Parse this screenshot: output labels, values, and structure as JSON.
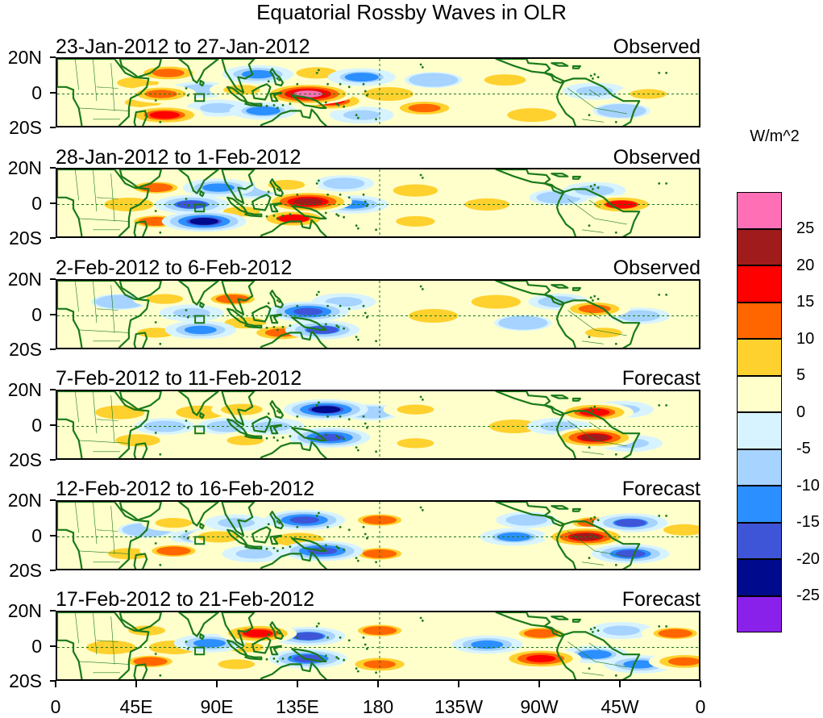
{
  "title": "Equatorial Rossby Waves in OLR",
  "units": "W/m^2",
  "y_axis_labels": [
    "20N",
    "0",
    "20S"
  ],
  "x_axis_labels": [
    "0",
    "45E",
    "90E",
    "135E",
    "180",
    "135W",
    "90W",
    "45W",
    "0"
  ],
  "colorbar": {
    "levels": [
      "25",
      "20",
      "15",
      "10",
      "5",
      "0",
      "-5",
      "-10",
      "-15",
      "-20",
      "-25"
    ],
    "colors": [
      "#ff6fb6",
      "#a01b1b",
      "#ff0000",
      "#ff6600",
      "#ffd12e",
      "#ffffcc",
      "#d7f3ff",
      "#a6d3ff",
      "#2b8fff",
      "#3f55d8",
      "#000a8c",
      "#8a21ea"
    ]
  },
  "panels": [
    {
      "dates": "23-Jan-2012 to 27-Jan-2012",
      "type": "Observed"
    },
    {
      "dates": "28-Jan-2012 to 1-Feb-2012",
      "type": "Observed"
    },
    {
      "dates": "2-Feb-2012 to 6-Feb-2012",
      "type": "Observed"
    },
    {
      "dates": "7-Feb-2012 to 11-Feb-2012",
      "type": "Forecast"
    },
    {
      "dates": "12-Feb-2012 to 16-Feb-2012",
      "type": "Forecast"
    },
    {
      "dates": "17-Feb-2012 to 21-Feb-2012",
      "type": "Forecast"
    }
  ],
  "map_styles": {
    "coastline_color": "#1a7a1a",
    "equator_color": "#1a7a1a"
  },
  "anomalies": [
    [
      {
        "lon": 45,
        "lat": 8,
        "value": 8
      },
      {
        "lon": 48,
        "lat": -6,
        "value": 10
      },
      {
        "lon": 58,
        "lat": 0,
        "value": 14
      },
      {
        "lon": 60,
        "lat": -15,
        "value": 18
      },
      {
        "lon": 62,
        "lat": 15,
        "value": 14
      },
      {
        "lon": 80,
        "lat": 3,
        "value": -8
      },
      {
        "lon": 90,
        "lat": -10,
        "value": -10
      },
      {
        "lon": 103,
        "lat": 3,
        "value": 10
      },
      {
        "lon": 112,
        "lat": 14,
        "value": -14
      },
      {
        "lon": 115,
        "lat": -12,
        "value": -12
      },
      {
        "lon": 140,
        "lat": 0,
        "value": 26
      },
      {
        "lon": 152,
        "lat": -5,
        "value": 18
      },
      {
        "lon": 145,
        "lat": 15,
        "value": 8
      },
      {
        "lon": 170,
        "lat": 12,
        "value": -12
      },
      {
        "lon": 170,
        "lat": -15,
        "value": -10
      },
      {
        "lon": 185,
        "lat": 0,
        "value": 6
      },
      {
        "lon": 205,
        "lat": -10,
        "value": 14
      },
      {
        "lon": 210,
        "lat": 10,
        "value": -6
      },
      {
        "lon": 250,
        "lat": 10,
        "value": 8
      },
      {
        "lon": 265,
        "lat": -15,
        "value": 6
      },
      {
        "lon": 300,
        "lat": 2,
        "value": -10
      },
      {
        "lon": 330,
        "lat": 0,
        "value": 10
      },
      {
        "lon": 315,
        "lat": -12,
        "value": -6
      }
    ],
    [
      {
        "lon": 40,
        "lat": 0,
        "value": 6
      },
      {
        "lon": 55,
        "lat": 12,
        "value": 12
      },
      {
        "lon": 55,
        "lat": -12,
        "value": 12
      },
      {
        "lon": 75,
        "lat": 0,
        "value": -16
      },
      {
        "lon": 82,
        "lat": -12,
        "value": -22
      },
      {
        "lon": 90,
        "lat": 12,
        "value": -14
      },
      {
        "lon": 103,
        "lat": -5,
        "value": 10
      },
      {
        "lon": 110,
        "lat": 10,
        "value": -8
      },
      {
        "lon": 128,
        "lat": 14,
        "value": 10
      },
      {
        "lon": 140,
        "lat": 2,
        "value": 24
      },
      {
        "lon": 132,
        "lat": -10,
        "value": 16
      },
      {
        "lon": 165,
        "lat": 0,
        "value": -14
      },
      {
        "lon": 160,
        "lat": 15,
        "value": -8
      },
      {
        "lon": 200,
        "lat": 10,
        "value": 7
      },
      {
        "lon": 200,
        "lat": -12,
        "value": 9
      },
      {
        "lon": 240,
        "lat": 0,
        "value": 7
      },
      {
        "lon": 280,
        "lat": 5,
        "value": -7
      },
      {
        "lon": 300,
        "lat": 10,
        "value": -9
      },
      {
        "lon": 315,
        "lat": 0,
        "value": 16
      },
      {
        "lon": 340,
        "lat": 0,
        "value": 4
      }
    ],
    [
      {
        "lon": 35,
        "lat": 10,
        "value": -6
      },
      {
        "lon": 55,
        "lat": -12,
        "value": 10
      },
      {
        "lon": 60,
        "lat": 12,
        "value": 10
      },
      {
        "lon": 75,
        "lat": 2,
        "value": -10
      },
      {
        "lon": 80,
        "lat": -10,
        "value": -14
      },
      {
        "lon": 98,
        "lat": 12,
        "value": 12
      },
      {
        "lon": 105,
        "lat": -5,
        "value": 8
      },
      {
        "lon": 140,
        "lat": 3,
        "value": -20
      },
      {
        "lon": 148,
        "lat": -10,
        "value": -16
      },
      {
        "lon": 125,
        "lat": -12,
        "value": 14
      },
      {
        "lon": 160,
        "lat": 10,
        "value": -10
      },
      {
        "lon": 210,
        "lat": 0,
        "value": 6
      },
      {
        "lon": 245,
        "lat": 10,
        "value": 6
      },
      {
        "lon": 260,
        "lat": -5,
        "value": -6
      },
      {
        "lon": 280,
        "lat": 10,
        "value": -8
      },
      {
        "lon": 300,
        "lat": 5,
        "value": 14
      },
      {
        "lon": 305,
        "lat": -12,
        "value": 10
      },
      {
        "lon": 325,
        "lat": 0,
        "value": -8
      }
    ],
    [
      {
        "lon": 35,
        "lat": 10,
        "value": 6
      },
      {
        "lon": 45,
        "lat": -10,
        "value": 7
      },
      {
        "lon": 60,
        "lat": 0,
        "value": -8
      },
      {
        "lon": 80,
        "lat": 10,
        "value": 6
      },
      {
        "lon": 95,
        "lat": 0,
        "value": -8
      },
      {
        "lon": 103,
        "lat": 12,
        "value": 8
      },
      {
        "lon": 105,
        "lat": -10,
        "value": 10
      },
      {
        "lon": 120,
        "lat": 0,
        "value": -10
      },
      {
        "lon": 150,
        "lat": 12,
        "value": -22
      },
      {
        "lon": 152,
        "lat": -8,
        "value": -20
      },
      {
        "lon": 175,
        "lat": 10,
        "value": -7
      },
      {
        "lon": 200,
        "lat": 12,
        "value": 10
      },
      {
        "lon": 200,
        "lat": -12,
        "value": 10
      },
      {
        "lon": 225,
        "lat": 0,
        "value": 5
      },
      {
        "lon": 255,
        "lat": 0,
        "value": 6
      },
      {
        "lon": 280,
        "lat": 0,
        "value": -10
      },
      {
        "lon": 300,
        "lat": 10,
        "value": 18
      },
      {
        "lon": 300,
        "lat": -8,
        "value": 22
      },
      {
        "lon": 315,
        "lat": 12,
        "value": -10
      },
      {
        "lon": 320,
        "lat": -12,
        "value": -10
      },
      {
        "lon": 345,
        "lat": 0,
        "value": 4
      }
    ],
    [
      {
        "lon": 40,
        "lat": -12,
        "value": 8
      },
      {
        "lon": 50,
        "lat": 5,
        "value": -6
      },
      {
        "lon": 65,
        "lat": 10,
        "value": 10
      },
      {
        "lon": 65,
        "lat": -10,
        "value": 12
      },
      {
        "lon": 80,
        "lat": 0,
        "value": -8
      },
      {
        "lon": 90,
        "lat": 0,
        "value": 8
      },
      {
        "lon": 100,
        "lat": 10,
        "value": -10
      },
      {
        "lon": 110,
        "lat": -12,
        "value": -10
      },
      {
        "lon": 138,
        "lat": 12,
        "value": -20
      },
      {
        "lon": 148,
        "lat": -10,
        "value": -20
      },
      {
        "lon": 135,
        "lat": -2,
        "value": 6
      },
      {
        "lon": 180,
        "lat": 12,
        "value": 12
      },
      {
        "lon": 180,
        "lat": -12,
        "value": 12
      },
      {
        "lon": 215,
        "lat": 0,
        "value": 3
      },
      {
        "lon": 255,
        "lat": 0,
        "value": -12
      },
      {
        "lon": 262,
        "lat": 12,
        "value": -8
      },
      {
        "lon": 295,
        "lat": 0,
        "value": 22
      },
      {
        "lon": 300,
        "lat": 10,
        "value": 12
      },
      {
        "lon": 320,
        "lat": 10,
        "value": -16
      },
      {
        "lon": 320,
        "lat": -12,
        "value": -18
      },
      {
        "lon": 350,
        "lat": 5,
        "value": 8
      }
    ],
    [
      {
        "lon": 30,
        "lat": 0,
        "value": 6
      },
      {
        "lon": 50,
        "lat": 12,
        "value": 10
      },
      {
        "lon": 52,
        "lat": -10,
        "value": 12
      },
      {
        "lon": 65,
        "lat": 0,
        "value": 6
      },
      {
        "lon": 85,
        "lat": 3,
        "value": -14
      },
      {
        "lon": 105,
        "lat": 0,
        "value": 10
      },
      {
        "lon": 112,
        "lat": 10,
        "value": 18
      },
      {
        "lon": 100,
        "lat": -12,
        "value": 10
      },
      {
        "lon": 140,
        "lat": 8,
        "value": -16
      },
      {
        "lon": 140,
        "lat": -8,
        "value": -18
      },
      {
        "lon": 180,
        "lat": 12,
        "value": 12
      },
      {
        "lon": 180,
        "lat": -12,
        "value": 14
      },
      {
        "lon": 210,
        "lat": 0,
        "value": 5
      },
      {
        "lon": 240,
        "lat": 2,
        "value": -14
      },
      {
        "lon": 270,
        "lat": 10,
        "value": 12
      },
      {
        "lon": 270,
        "lat": -8,
        "value": 20
      },
      {
        "lon": 300,
        "lat": -5,
        "value": -12
      },
      {
        "lon": 315,
        "lat": 12,
        "value": -10
      },
      {
        "lon": 325,
        "lat": -12,
        "value": -14
      },
      {
        "lon": 345,
        "lat": 10,
        "value": 12
      },
      {
        "lon": 350,
        "lat": -10,
        "value": 14
      }
    ]
  ]
}
